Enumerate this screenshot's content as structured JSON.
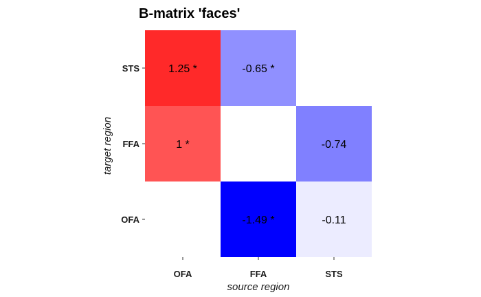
{
  "chart_data": {
    "type": "heatmap",
    "title": "B-matrix 'faces'",
    "xlabel": "source region",
    "ylabel": "target region",
    "x_categories": [
      "OFA",
      "FFA",
      "STS"
    ],
    "y_categories": [
      "OFA",
      "FFA",
      "STS"
    ],
    "cells": [
      {
        "source": "OFA",
        "target": "STS",
        "value": 1.25,
        "label": "1.25 *"
      },
      {
        "source": "FFA",
        "target": "STS",
        "value": -0.65,
        "label": "-0.65 *"
      },
      {
        "source": "OFA",
        "target": "FFA",
        "value": 1,
        "label": "1 *"
      },
      {
        "source": "STS",
        "target": "FFA",
        "value": -0.74,
        "label": "-0.74"
      },
      {
        "source": "FFA",
        "target": "OFA",
        "value": -1.49,
        "label": "-1.49 *"
      },
      {
        "source": "STS",
        "target": "OFA",
        "value": -0.11,
        "label": "-0.11"
      }
    ],
    "color_scale": {
      "low": "#0000ff",
      "mid": "#ffffff",
      "high": "#ff0000",
      "min": -1.49,
      "max": 1.49
    },
    "grid": false,
    "legend": "none"
  }
}
